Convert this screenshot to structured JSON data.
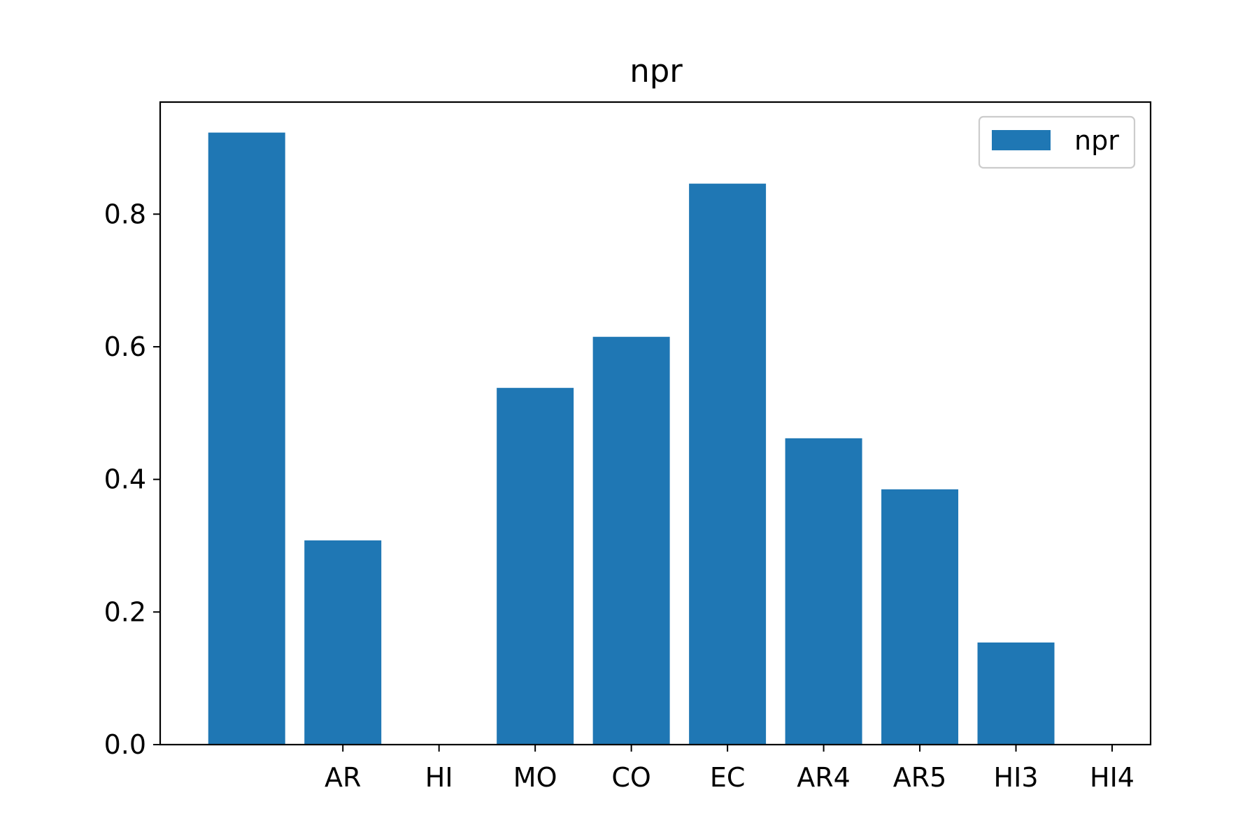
{
  "chart_data": {
    "type": "bar",
    "title": "npr",
    "xlabel": "",
    "ylabel": "",
    "categories": [
      "AR",
      "HI",
      "MO",
      "CO",
      "EC",
      "AR4",
      "AR5",
      "HI3",
      "HI4"
    ],
    "series": [
      {
        "name": "npr",
        "values": [
          0.923,
          0.308,
          0.0,
          0.538,
          0.615,
          0.846,
          0.462,
          0.385,
          0.154
        ]
      }
    ],
    "ylim": [
      0,
      0.969
    ],
    "yticks": [
      0.0,
      0.2,
      0.4,
      0.6,
      0.8
    ],
    "ytick_labels": [
      "0.0",
      "0.2",
      "0.4",
      "0.6",
      "0.8"
    ],
    "grid": false,
    "legend_position": "top-right",
    "colors": {
      "bar": "#1f77b4"
    }
  }
}
